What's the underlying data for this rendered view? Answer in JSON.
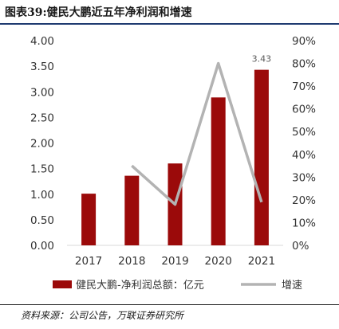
{
  "header": {
    "title": "图表39:健民大鹏近五年净利润和增速"
  },
  "footer": {
    "source": "资料来源：公司公告，万联证券研究所"
  },
  "chart_data": {
    "type": "bar",
    "categories": [
      "2017",
      "2018",
      "2019",
      "2020",
      "2021"
    ],
    "series": [
      {
        "name": "健民大鹏-净利润总额：亿元",
        "type": "bar",
        "axis": "left",
        "color": "#9b0a0a",
        "values": [
          1.01,
          1.36,
          1.6,
          2.89,
          3.43
        ]
      },
      {
        "name": "增速",
        "type": "line",
        "axis": "right",
        "color": "#b3b3b3",
        "values": [
          null,
          0.35,
          0.18,
          0.8,
          0.19
        ]
      }
    ],
    "data_labels": [
      {
        "series": 0,
        "index": 4,
        "text": "3.43"
      }
    ],
    "y_left": {
      "ylim": [
        0,
        4
      ],
      "ticks": [
        "0.00",
        "0.50",
        "1.00",
        "1.50",
        "2.00",
        "2.50",
        "3.00",
        "3.50",
        "4.00"
      ]
    },
    "y_right": {
      "ylim": [
        0,
        0.9
      ],
      "ticks": [
        "0%",
        "10%",
        "20%",
        "30%",
        "40%",
        "50%",
        "60%",
        "70%",
        "80%",
        "90%"
      ]
    },
    "grid": false,
    "legend_position": "bottom"
  }
}
